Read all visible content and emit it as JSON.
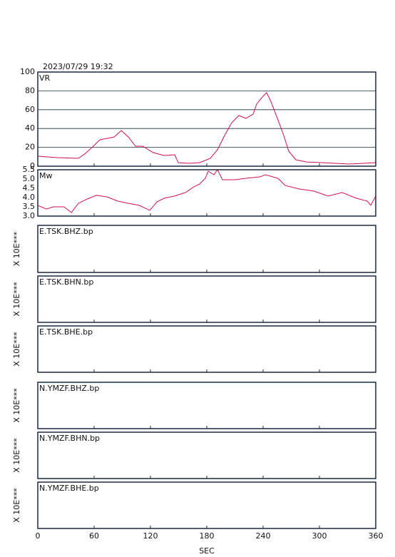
{
  "chart_data": [
    {
      "type": "line",
      "title": "2023/07/29 19:32",
      "label": "VR",
      "xlim": [
        0,
        360
      ],
      "ylim": [
        0,
        100
      ],
      "yticks": [
        0,
        20,
        40,
        60,
        80,
        100
      ],
      "grid": true,
      "x": [
        0,
        20.5,
        43.3,
        50.9,
        58.5,
        66.1,
        73.7,
        81.3,
        88.9,
        96.5,
        104.1,
        111.7,
        123,
        134.4,
        145.8,
        149.6,
        161,
        172.4,
        183.8,
        191.4,
        199,
        206.6,
        214.2,
        221.8,
        229.4,
        233.2,
        239.2,
        243.8,
        248.3,
        255.9,
        262,
        267.3,
        274.9,
        286.3,
        301.5,
        316.7,
        331.9,
        347.1,
        360
      ],
      "series": [
        {
          "color": "#d0104c",
          "values": [
            10.6,
            9.1,
            8.3,
            13.6,
            20.5,
            28,
            29.5,
            31,
            37.9,
            31,
            21.2,
            21.2,
            14.4,
            11.4,
            12.1,
            3.8,
            3,
            3.8,
            8.3,
            17.4,
            32.6,
            46.2,
            53.8,
            50.8,
            55.3,
            65.9,
            73.5,
            78,
            68.9,
            49.2,
            32.6,
            15.9,
            6.8,
            4.5,
            3.8,
            3,
            2.3,
            3,
            3.8
          ]
        }
      ]
    },
    {
      "type": "line",
      "label": "Mw",
      "xlim": [
        0,
        360
      ],
      "ylim": [
        3,
        5.5
      ],
      "yticks": [
        {
          "value": 3,
          "label": "3.0"
        },
        3.5,
        {
          "value": 4,
          "label": "4.0"
        },
        4.5,
        {
          "value": 5,
          "label": "5.0"
        },
        5.5
      ],
      "grid": false,
      "x": [
        0,
        9.1,
        16.7,
        28.1,
        35.7,
        43.3,
        50.9,
        62.3,
        73.7,
        85.1,
        96.5,
        107.9,
        119.3,
        126.9,
        134.5,
        145.8,
        157.2,
        166.3,
        172.4,
        178.5,
        181.5,
        187.6,
        191.4,
        196.7,
        210.4,
        221.8,
        237,
        242.3,
        255.9,
        263.5,
        278.7,
        293.9,
        309.1,
        324.3,
        339.5,
        350.9,
        354.7,
        360
      ],
      "series": [
        {
          "color": "#d0104c",
          "values": [
            3.58,
            3.38,
            3.5,
            3.5,
            3.19,
            3.69,
            3.88,
            4.12,
            4.04,
            3.81,
            3.69,
            3.58,
            3.31,
            3.77,
            3.96,
            4.08,
            4.27,
            4.58,
            4.73,
            5.04,
            5.42,
            5.23,
            5.5,
            4.96,
            4.96,
            5.04,
            5.12,
            5.23,
            5.04,
            4.65,
            4.46,
            4.35,
            4.08,
            4.27,
            3.96,
            3.81,
            3.58,
            4.08
          ]
        }
      ]
    },
    {
      "type": "line",
      "label": "E.TSK.BHZ.bp",
      "ylabel": "X 10E***",
      "xlim": [
        0,
        360
      ]
    },
    {
      "type": "line",
      "label": "E.TSK.BHN.bp",
      "ylabel": "X 10E***",
      "xlim": [
        0,
        360
      ]
    },
    {
      "type": "line",
      "label": "E.TSK.BHE.bp",
      "ylabel": "X 10E***",
      "xlim": [
        0,
        360
      ]
    },
    {
      "type": "line",
      "label": "N.YMZF.BHZ.bp",
      "ylabel": "X 10E***",
      "xlim": [
        0,
        360
      ]
    },
    {
      "type": "line",
      "label": "N.YMZF.BHN.bp",
      "ylabel": "X 10E***",
      "xlim": [
        0,
        360
      ]
    },
    {
      "type": "line",
      "label": "N.YMZF.BHE.bp",
      "ylabel": "X 10E***",
      "xlim": [
        0,
        360
      ],
      "xticks": [
        0,
        60,
        120,
        180,
        240,
        300,
        360
      ],
      "xlabel": "SEC"
    }
  ]
}
